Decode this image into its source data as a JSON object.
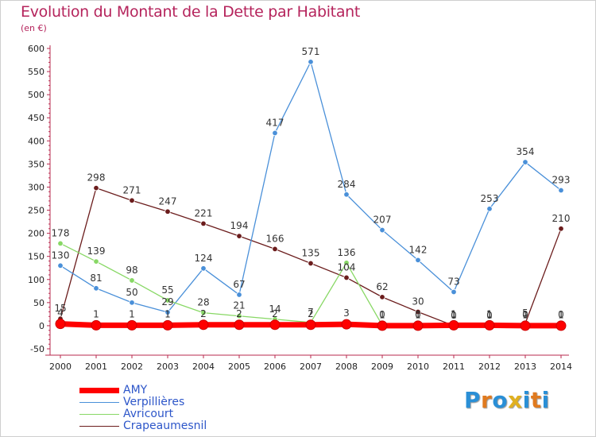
{
  "title": "Evolution du Montant de la Dette par Habitant",
  "unit": "(en €)",
  "logo": "Proxiti",
  "chart_data": {
    "type": "line",
    "title": "Evolution du Montant de la Dette par Habitant",
    "subtitle": "(en €)",
    "xlabel": "",
    "ylabel": "",
    "x": [
      "2000",
      "2001",
      "2002",
      "2003",
      "2004",
      "2005",
      "2006",
      "2007",
      "2008",
      "2009",
      "2010",
      "2011",
      "2012",
      "2013",
      "2014"
    ],
    "ylim": [
      -50,
      600
    ],
    "yticks": [
      "-50",
      "0",
      "50",
      "100",
      "150",
      "200",
      "250",
      "300",
      "350",
      "400",
      "450",
      "500",
      "550",
      "600"
    ],
    "grid": false,
    "legend_position": "bottom-left",
    "series": [
      {
        "name": "AMY",
        "color": "#ff0000",
        "values": [
          4,
          1,
          1,
          1,
          2,
          2,
          2,
          2,
          3,
          0,
          0,
          1,
          1,
          0,
          0
        ],
        "labels": [
          "4",
          "1",
          "1",
          "1",
          "2",
          "2",
          "2",
          "2",
          "3",
          "0",
          "0",
          "1",
          "1",
          "0",
          "0"
        ]
      },
      {
        "name": "Verpillières",
        "color": "#4a90d9",
        "values": [
          130,
          81,
          50,
          29,
          124,
          67,
          417,
          571,
          284,
          207,
          142,
          73,
          253,
          354,
          293
        ],
        "labels": [
          "130",
          "81",
          "50",
          "29",
          "124",
          "67",
          "417",
          "571",
          "284",
          "207",
          "142",
          "73",
          "253",
          "354",
          "293"
        ]
      },
      {
        "name": "Avricourt",
        "color": "#88d865",
        "values": [
          178,
          139,
          98,
          55,
          28,
          21,
          14,
          7,
          136,
          1,
          1,
          1,
          1,
          1,
          1
        ],
        "labels": [
          "178",
          "139",
          "98",
          "55",
          "28",
          "21",
          "14",
          "7",
          "136",
          "1",
          "1",
          "1",
          "1",
          "1",
          "1"
        ]
      },
      {
        "name": "Crapeaumesnil",
        "color": "#6b1c1c",
        "values": [
          15,
          298,
          271,
          247,
          221,
          194,
          166,
          135,
          104,
          62,
          30,
          0,
          0,
          5,
          210
        ],
        "labels": [
          "15",
          "298",
          "271",
          "247",
          "221",
          "194",
          "166",
          "135",
          "104",
          "62",
          "30",
          "0",
          "0",
          "5",
          "210"
        ]
      }
    ]
  }
}
